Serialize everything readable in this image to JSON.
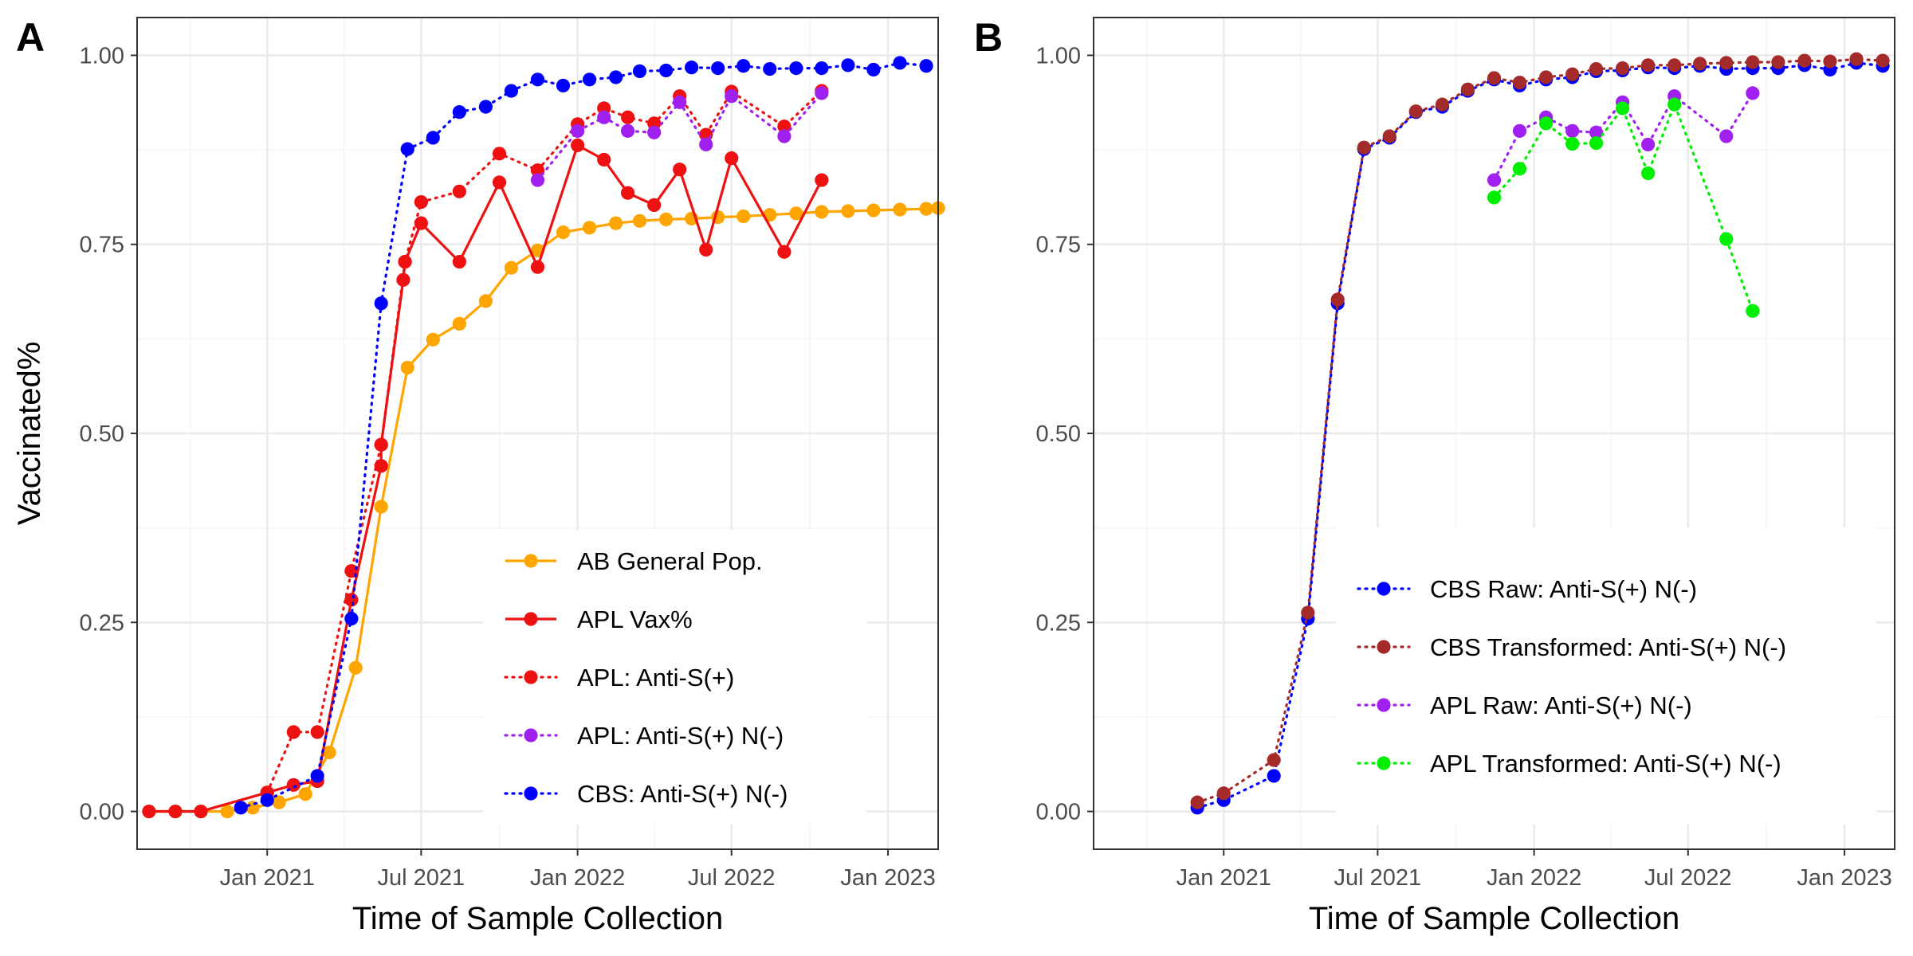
{
  "chart_data": [
    {
      "panel_tag": "A",
      "type": "line",
      "xlabel": "Time of Sample Collection",
      "ylabel": "Vaccinated%",
      "xlim": [
        "2020-08-01",
        "2023-03-01"
      ],
      "ylim": [
        -0.05,
        1.05
      ],
      "x_ticks": [
        "2021-01-01",
        "2021-07-01",
        "2022-01-01",
        "2022-07-01",
        "2023-01-01"
      ],
      "x_tick_labels": [
        "Jan 2021",
        "Jul 2021",
        "Jan 2022",
        "Jul 2022",
        "Jan 2023"
      ],
      "y_ticks": [
        0,
        0.25,
        0.5,
        0.75,
        1
      ],
      "y_tick_labels": [
        "0.00",
        "0.25",
        "0.50",
        "0.75",
        "1.00"
      ],
      "grid": true,
      "legend_position": "bottom-right inside",
      "series": [
        {
          "name": "AB General Pop.",
          "color": "#FFA500",
          "line": "solid",
          "points": [
            [
              "2020-08-15",
              0
            ],
            [
              "2020-09-15",
              0
            ],
            [
              "2020-10-15",
              0
            ],
            [
              "2020-11-15",
              0
            ],
            [
              "2020-12-15",
              0.005
            ],
            [
              "2021-01-15",
              0.012
            ],
            [
              "2021-02-15",
              0.023
            ],
            [
              "2021-03-15",
              0.078
            ],
            [
              "2021-04-15",
              0.19
            ],
            [
              "2021-05-15",
              0.403
            ],
            [
              "2021-06-15",
              0.587
            ],
            [
              "2021-07-15",
              0.624
            ],
            [
              "2021-08-15",
              0.645
            ],
            [
              "2021-09-15",
              0.675
            ],
            [
              "2021-10-15",
              0.719
            ],
            [
              "2021-11-15",
              0.742
            ],
            [
              "2021-12-15",
              0.766
            ],
            [
              "2022-01-15",
              0.772
            ],
            [
              "2022-02-15",
              0.778
            ],
            [
              "2022-03-15",
              0.781
            ],
            [
              "2022-04-15",
              0.783
            ],
            [
              "2022-05-15",
              0.784
            ],
            [
              "2022-06-15",
              0.786
            ],
            [
              "2022-07-15",
              0.787
            ],
            [
              "2022-08-15",
              0.789
            ],
            [
              "2022-09-15",
              0.791
            ],
            [
              "2022-10-15",
              0.793
            ],
            [
              "2022-11-15",
              0.794
            ],
            [
              "2022-12-15",
              0.795
            ],
            [
              "2023-01-15",
              0.796
            ],
            [
              "2023-02-15",
              0.797
            ],
            [
              "2023-03-01",
              0.798
            ]
          ]
        },
        {
          "name": "APL Vax%",
          "color": "#EE1111",
          "line": "solid",
          "points": [
            [
              "2020-08-15",
              0
            ],
            [
              "2020-09-15",
              0
            ],
            [
              "2020-10-15",
              0
            ],
            [
              "2021-01-01",
              0.025
            ],
            [
              "2021-02-01",
              0.035
            ],
            [
              "2021-03-01",
              0.04
            ],
            [
              "2021-04-10",
              0.28
            ],
            [
              "2021-05-15",
              0.457
            ],
            [
              "2021-05-15",
              0.485
            ],
            [
              "2021-06-10",
              0.703
            ],
            [
              "2021-06-12",
              0.727
            ],
            [
              "2021-07-01",
              0.778
            ],
            [
              "2021-08-15",
              0.727
            ],
            [
              "2021-10-01",
              0.832
            ],
            [
              "2021-11-15",
              0.72
            ],
            [
              "2022-01-01",
              0.881
            ],
            [
              "2022-02-01",
              0.862
            ],
            [
              "2022-03-01",
              0.818
            ],
            [
              "2022-04-01",
              0.802
            ],
            [
              "2022-05-01",
              0.849
            ],
            [
              "2022-06-01",
              0.743
            ],
            [
              "2022-07-01",
              0.864
            ],
            [
              "2022-09-01",
              0.74
            ],
            [
              "2022-10-15",
              0.835
            ]
          ]
        },
        {
          "name": "APL: Anti-S(+)",
          "color": "#EE1111",
          "line": "dotted",
          "points": [
            [
              "2021-01-01",
              0.025
            ],
            [
              "2021-02-01",
              0.105
            ],
            [
              "2021-03-01",
              0.105
            ],
            [
              "2021-04-10",
              0.318
            ],
            [
              "2021-05-15",
              0.485
            ],
            [
              "2021-06-12",
              0.727
            ],
            [
              "2021-07-01",
              0.806
            ],
            [
              "2021-08-15",
              0.82
            ],
            [
              "2021-10-01",
              0.87
            ],
            [
              "2021-11-15",
              0.848
            ],
            [
              "2022-01-01",
              0.909
            ],
            [
              "2022-02-01",
              0.93
            ],
            [
              "2022-03-01",
              0.918
            ],
            [
              "2022-04-01",
              0.91
            ],
            [
              "2022-05-01",
              0.946
            ],
            [
              "2022-06-01",
              0.895
            ],
            [
              "2022-07-01",
              0.952
            ],
            [
              "2022-09-01",
              0.906
            ],
            [
              "2022-10-15",
              0.953
            ]
          ]
        },
        {
          "name": "APL: Anti-S(+) N(-)",
          "color": "#A020F0",
          "line": "dotted",
          "points": [
            [
              "2021-11-15",
              0.835
            ],
            [
              "2022-01-01",
              0.9
            ],
            [
              "2022-02-01",
              0.918
            ],
            [
              "2022-03-01",
              0.9
            ],
            [
              "2022-04-01",
              0.898
            ],
            [
              "2022-05-01",
              0.938
            ],
            [
              "2022-06-01",
              0.882
            ],
            [
              "2022-07-01",
              0.946
            ],
            [
              "2022-09-01",
              0.893
            ],
            [
              "2022-10-15",
              0.95
            ]
          ]
        },
        {
          "name": "CBS: Anti-S(+) N(-)",
          "color": "#0000FF",
          "line": "dotted",
          "points": [
            [
              "2020-12-01",
              0.005
            ],
            [
              "2021-01-01",
              0.015
            ],
            [
              "2021-03-01",
              0.047
            ],
            [
              "2021-04-10",
              0.255
            ],
            [
              "2021-05-15",
              0.672
            ],
            [
              "2021-06-15",
              0.876
            ],
            [
              "2021-07-15",
              0.891
            ],
            [
              "2021-08-15",
              0.925
            ],
            [
              "2021-09-15",
              0.932
            ],
            [
              "2021-10-15",
              0.953
            ],
            [
              "2021-11-15",
              0.968
            ],
            [
              "2021-12-15",
              0.96
            ],
            [
              "2022-01-15",
              0.968
            ],
            [
              "2022-02-15",
              0.971
            ],
            [
              "2022-03-15",
              0.979
            ],
            [
              "2022-04-15",
              0.98
            ],
            [
              "2022-05-15",
              0.984
            ],
            [
              "2022-06-15",
              0.983
            ],
            [
              "2022-07-15",
              0.986
            ],
            [
              "2022-08-15",
              0.982
            ],
            [
              "2022-09-15",
              0.983
            ],
            [
              "2022-10-15",
              0.983
            ],
            [
              "2022-11-15",
              0.987
            ],
            [
              "2022-12-15",
              0.981
            ],
            [
              "2023-01-15",
              0.99
            ],
            [
              "2023-02-15",
              0.986
            ]
          ]
        }
      ]
    },
    {
      "panel_tag": "B",
      "type": "line",
      "xlabel": "Time of Sample Collection",
      "ylabel": "",
      "xlim": [
        "2020-08-01",
        "2023-03-01"
      ],
      "ylim": [
        -0.05,
        1.05
      ],
      "x_ticks": [
        "2021-01-01",
        "2021-07-01",
        "2022-01-01",
        "2022-07-01",
        "2023-01-01"
      ],
      "x_tick_labels": [
        "Jan 2021",
        "Jul 2021",
        "Jan 2022",
        "Jul 2022",
        "Jan 2023"
      ],
      "y_ticks": [
        0,
        0.25,
        0.5,
        0.75,
        1
      ],
      "y_tick_labels": [
        "0.00",
        "0.25",
        "0.50",
        "0.75",
        "1.00"
      ],
      "grid": true,
      "legend_position": "bottom-right inside",
      "series": [
        {
          "name": "CBS Raw: Anti-S(+) N(-)",
          "color": "#0000FF",
          "line": "dotted",
          "points": [
            [
              "2020-12-01",
              0.005
            ],
            [
              "2021-01-01",
              0.015
            ],
            [
              "2021-03-01",
              0.047
            ],
            [
              "2021-04-10",
              0.255
            ],
            [
              "2021-05-15",
              0.672
            ],
            [
              "2021-06-15",
              0.876
            ],
            [
              "2021-07-15",
              0.891
            ],
            [
              "2021-08-15",
              0.925
            ],
            [
              "2021-09-15",
              0.932
            ],
            [
              "2021-10-15",
              0.953
            ],
            [
              "2021-11-15",
              0.968
            ],
            [
              "2021-12-15",
              0.96
            ],
            [
              "2022-01-15",
              0.968
            ],
            [
              "2022-02-15",
              0.971
            ],
            [
              "2022-03-15",
              0.979
            ],
            [
              "2022-04-15",
              0.98
            ],
            [
              "2022-05-15",
              0.984
            ],
            [
              "2022-06-15",
              0.983
            ],
            [
              "2022-07-15",
              0.986
            ],
            [
              "2022-08-15",
              0.982
            ],
            [
              "2022-09-15",
              0.983
            ],
            [
              "2022-10-15",
              0.983
            ],
            [
              "2022-11-15",
              0.987
            ],
            [
              "2022-12-15",
              0.981
            ],
            [
              "2023-01-15",
              0.99
            ],
            [
              "2023-02-15",
              0.986
            ]
          ]
        },
        {
          "name": "CBS Transformed: Anti-S(+) N(-)",
          "color": "#A52A2A",
          "line": "dotted",
          "points": [
            [
              "2020-12-01",
              0.012
            ],
            [
              "2021-01-01",
              0.024
            ],
            [
              "2021-03-01",
              0.068
            ],
            [
              "2021-04-10",
              0.263
            ],
            [
              "2021-05-15",
              0.677
            ],
            [
              "2021-06-15",
              0.878
            ],
            [
              "2021-07-15",
              0.893
            ],
            [
              "2021-08-15",
              0.926
            ],
            [
              "2021-09-15",
              0.935
            ],
            [
              "2021-10-15",
              0.955
            ],
            [
              "2021-11-15",
              0.97
            ],
            [
              "2021-12-15",
              0.964
            ],
            [
              "2022-01-15",
              0.971
            ],
            [
              "2022-02-15",
              0.975
            ],
            [
              "2022-03-15",
              0.982
            ],
            [
              "2022-04-15",
              0.983
            ],
            [
              "2022-05-15",
              0.987
            ],
            [
              "2022-06-15",
              0.987
            ],
            [
              "2022-07-15",
              0.989
            ],
            [
              "2022-08-15",
              0.99
            ],
            [
              "2022-09-15",
              0.991
            ],
            [
              "2022-10-15",
              0.991
            ],
            [
              "2022-11-15",
              0.993
            ],
            [
              "2022-12-15",
              0.992
            ],
            [
              "2023-01-15",
              0.995
            ],
            [
              "2023-02-15",
              0.993
            ]
          ]
        },
        {
          "name": "APL Raw: Anti-S(+) N(-)",
          "color": "#A020F0",
          "line": "dotted",
          "points": [
            [
              "2021-11-15",
              0.835
            ],
            [
              "2021-12-15",
              0.9
            ],
            [
              "2022-01-15",
              0.918
            ],
            [
              "2022-02-15",
              0.9
            ],
            [
              "2022-03-15",
              0.898
            ],
            [
              "2022-04-15",
              0.938
            ],
            [
              "2022-05-15",
              0.882
            ],
            [
              "2022-06-15",
              0.946
            ],
            [
              "2022-08-15",
              0.893
            ],
            [
              "2022-09-15",
              0.95
            ]
          ]
        },
        {
          "name": "APL Transformed: Anti-S(+) N(-)",
          "color": "#00EE00",
          "line": "dotted",
          "points": [
            [
              "2021-11-15",
              0.812
            ],
            [
              "2021-12-15",
              0.85
            ],
            [
              "2022-01-15",
              0.91
            ],
            [
              "2022-02-15",
              0.883
            ],
            [
              "2022-03-15",
              0.884
            ],
            [
              "2022-04-15",
              0.93
            ],
            [
              "2022-05-15",
              0.844
            ],
            [
              "2022-06-15",
              0.935
            ],
            [
              "2022-08-15",
              0.757
            ],
            [
              "2022-09-15",
              0.662
            ]
          ]
        }
      ]
    }
  ]
}
